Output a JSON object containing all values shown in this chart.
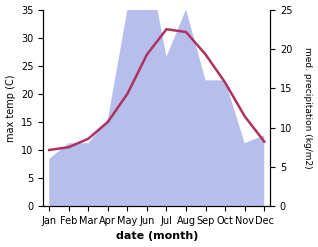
{
  "months": [
    "Jan",
    "Feb",
    "Mar",
    "Apr",
    "May",
    "Jun",
    "Jul",
    "Aug",
    "Sep",
    "Oct",
    "Nov",
    "Dec"
  ],
  "temperature": [
    10.0,
    10.5,
    12.0,
    15.0,
    20.0,
    27.0,
    31.5,
    31.0,
    27.0,
    22.0,
    16.0,
    11.5
  ],
  "precipitation": [
    6.0,
    8.0,
    8.0,
    11.0,
    25.0,
    32.0,
    19.0,
    25.0,
    16.0,
    16.0,
    8.0,
    9.0
  ],
  "temp_color": "#b03060",
  "precip_color": "#aab4e8",
  "temp_ylim": [
    0,
    35
  ],
  "precip_ylim": [
    0,
    25
  ],
  "temp_yticks": [
    0,
    5,
    10,
    15,
    20,
    25,
    30,
    35
  ],
  "precip_yticks": [
    0,
    5,
    10,
    15,
    20,
    25
  ],
  "xlabel": "date (month)",
  "ylabel_left": "max temp (C)",
  "ylabel_right": "med. precipitation (kg/m2)",
  "fig_width": 3.18,
  "fig_height": 2.47,
  "dpi": 100
}
